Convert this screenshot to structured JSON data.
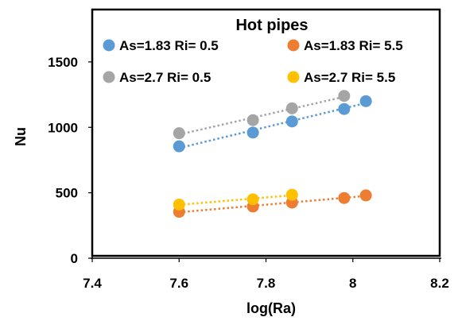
{
  "chart_data": {
    "type": "scatter",
    "title": "Hot pipes",
    "xlabel": "log(Ra)",
    "ylabel": "Nu",
    "xlim": [
      7.4,
      8.2
    ],
    "ylim": [
      0,
      1900
    ],
    "x_ticks": [
      "7.4",
      "7.6",
      "7.8",
      "8",
      "8.2"
    ],
    "y_ticks": [
      "0",
      "500",
      "1000",
      "1500"
    ],
    "x_tick_values": [
      7.4,
      7.6,
      7.8,
      8.0,
      8.2
    ],
    "y_tick_values": [
      0,
      500,
      1000,
      1500
    ],
    "grid": false,
    "legend_position": "top",
    "trendlines": "linear, dotted",
    "series": [
      {
        "name": "As=1.83 Ri= 0.5",
        "color": "#5B9BD5",
        "x": [
          7.6,
          7.77,
          7.86,
          7.98,
          8.03
        ],
        "y": [
          855,
          960,
          1045,
          1140,
          1200
        ]
      },
      {
        "name": "As=1.83 Ri= 5.5",
        "color": "#ED7D31",
        "x": [
          7.6,
          7.77,
          7.86,
          7.98,
          8.03
        ],
        "y": [
          355,
          395,
          425,
          460,
          480
        ]
      },
      {
        "name": "As=2.7 Ri= 0.5",
        "color": "#A5A5A5",
        "x": [
          7.6,
          7.77,
          7.86,
          7.98
        ],
        "y": [
          955,
          1055,
          1145,
          1240
        ]
      },
      {
        "name": "As=2.7 Ri= 5.5",
        "color": "#FFC000",
        "x": [
          7.6,
          7.77,
          7.86
        ],
        "y": [
          410,
          450,
          485
        ]
      }
    ]
  }
}
